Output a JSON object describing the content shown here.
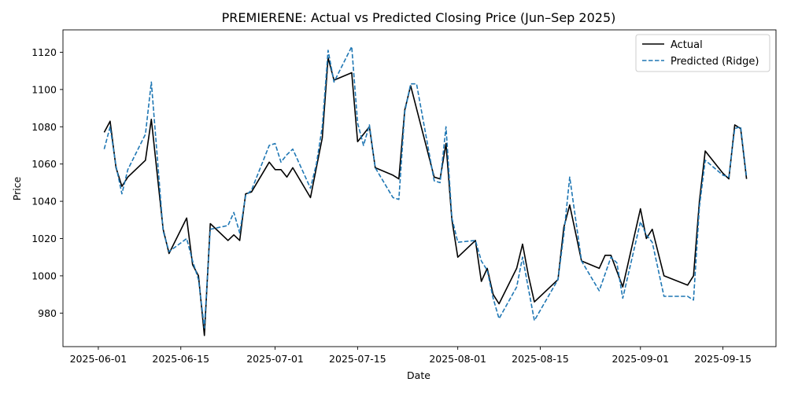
{
  "chart_data": {
    "type": "line",
    "title": "PREMIERENE: Actual vs Predicted Closing Price (Jun–Sep 2025)",
    "xlabel": "Date",
    "ylabel": "Price",
    "xlim": [
      "2025-05-26",
      "2025-09-24"
    ],
    "ylim": [
      962,
      1132
    ],
    "grid": false,
    "legend_position": "top-right",
    "x_ticks": [
      "2025-06-01",
      "2025-06-15",
      "2025-07-01",
      "2025-07-15",
      "2025-08-01",
      "2025-08-15",
      "2025-09-01",
      "2025-09-15"
    ],
    "y_ticks": [
      980,
      1000,
      1020,
      1040,
      1060,
      1080,
      1100,
      1120
    ],
    "series": [
      {
        "name": "Actual",
        "color": "#000000",
        "style": "solid",
        "points": [
          [
            "2025-06-02",
            1077
          ],
          [
            "2025-06-03",
            1083
          ],
          [
            "2025-06-04",
            1058
          ],
          [
            "2025-06-05",
            1048
          ],
          [
            "2025-06-06",
            1053
          ],
          [
            "2025-06-09",
            1062
          ],
          [
            "2025-06-10",
            1084
          ],
          [
            "2025-06-12",
            1025
          ],
          [
            "2025-06-13",
            1012
          ],
          [
            "2025-06-16",
            1031
          ],
          [
            "2025-06-17",
            1006
          ],
          [
            "2025-06-18",
            1000
          ],
          [
            "2025-06-19",
            968
          ],
          [
            "2025-06-20",
            1028
          ],
          [
            "2025-06-23",
            1019
          ],
          [
            "2025-06-24",
            1022
          ],
          [
            "2025-06-25",
            1019
          ],
          [
            "2025-06-26",
            1044
          ],
          [
            "2025-06-27",
            1045
          ],
          [
            "2025-06-30",
            1061
          ],
          [
            "2025-07-01",
            1057
          ],
          [
            "2025-07-02",
            1057
          ],
          [
            "2025-07-03",
            1053
          ],
          [
            "2025-07-04",
            1058
          ],
          [
            "2025-07-07",
            1042
          ],
          [
            "2025-07-08",
            1058
          ],
          [
            "2025-07-09",
            1074
          ],
          [
            "2025-07-10",
            1117
          ],
          [
            "2025-07-11",
            1105
          ],
          [
            "2025-07-14",
            1109
          ],
          [
            "2025-07-15",
            1072
          ],
          [
            "2025-07-16",
            1076
          ],
          [
            "2025-07-17",
            1080
          ],
          [
            "2025-07-18",
            1058
          ],
          [
            "2025-07-21",
            1054
          ],
          [
            "2025-07-22",
            1052
          ],
          [
            "2025-07-23",
            1089
          ],
          [
            "2025-07-24",
            1102
          ],
          [
            "2025-07-28",
            1053
          ],
          [
            "2025-07-29",
            1052
          ],
          [
            "2025-07-30",
            1071
          ],
          [
            "2025-07-31",
            1030
          ],
          [
            "2025-08-01",
            1010
          ],
          [
            "2025-08-04",
            1019
          ],
          [
            "2025-08-05",
            997
          ],
          [
            "2025-08-06",
            1004
          ],
          [
            "2025-08-07",
            990
          ],
          [
            "2025-08-08",
            985
          ],
          [
            "2025-08-11",
            1004
          ],
          [
            "2025-08-12",
            1017
          ],
          [
            "2025-08-13",
            1000
          ],
          [
            "2025-08-14",
            986
          ],
          [
            "2025-08-18",
            998
          ],
          [
            "2025-08-19",
            1026
          ],
          [
            "2025-08-20",
            1038
          ],
          [
            "2025-08-22",
            1008
          ],
          [
            "2025-08-25",
            1004
          ],
          [
            "2025-08-26",
            1011
          ],
          [
            "2025-08-27",
            1011
          ],
          [
            "2025-08-29",
            994
          ],
          [
            "2025-09-01",
            1036
          ],
          [
            "2025-09-02",
            1020
          ],
          [
            "2025-09-03",
            1025
          ],
          [
            "2025-09-05",
            1000
          ],
          [
            "2025-09-09",
            995
          ],
          [
            "2025-09-10",
            1000
          ],
          [
            "2025-09-11",
            1040
          ],
          [
            "2025-09-12",
            1067
          ],
          [
            "2025-09-15",
            1055
          ],
          [
            "2025-09-16",
            1052
          ],
          [
            "2025-09-17",
            1081
          ],
          [
            "2025-09-18",
            1079
          ],
          [
            "2025-09-19",
            1052
          ]
        ]
      },
      {
        "name": "Predicted (Ridge)",
        "color": "#1f77b4",
        "style": "dashed",
        "points": [
          [
            "2025-06-02",
            1068
          ],
          [
            "2025-06-03",
            1080
          ],
          [
            "2025-06-04",
            1059
          ],
          [
            "2025-06-05",
            1044
          ],
          [
            "2025-06-06",
            1057
          ],
          [
            "2025-06-09",
            1076
          ],
          [
            "2025-06-10",
            1104
          ],
          [
            "2025-06-12",
            1024
          ],
          [
            "2025-06-13",
            1013
          ],
          [
            "2025-06-16",
            1020
          ],
          [
            "2025-06-17",
            1008
          ],
          [
            "2025-06-18",
            998
          ],
          [
            "2025-06-19",
            972
          ],
          [
            "2025-06-20",
            1025
          ],
          [
            "2025-06-23",
            1027
          ],
          [
            "2025-06-24",
            1034
          ],
          [
            "2025-06-25",
            1023
          ],
          [
            "2025-06-26",
            1043
          ],
          [
            "2025-06-27",
            1046
          ],
          [
            "2025-06-30",
            1070
          ],
          [
            "2025-07-01",
            1071
          ],
          [
            "2025-07-02",
            1061
          ],
          [
            "2025-07-03",
            1065
          ],
          [
            "2025-07-04",
            1068
          ],
          [
            "2025-07-07",
            1047
          ],
          [
            "2025-07-08",
            1060
          ],
          [
            "2025-07-09",
            1080
          ],
          [
            "2025-07-10",
            1121
          ],
          [
            "2025-07-11",
            1104
          ],
          [
            "2025-07-14",
            1123
          ],
          [
            "2025-07-15",
            1082
          ],
          [
            "2025-07-16",
            1070
          ],
          [
            "2025-07-17",
            1081
          ],
          [
            "2025-07-18",
            1058
          ],
          [
            "2025-07-21",
            1042
          ],
          [
            "2025-07-22",
            1041
          ],
          [
            "2025-07-23",
            1088
          ],
          [
            "2025-07-24",
            1103
          ],
          [
            "2025-07-25",
            1103
          ],
          [
            "2025-07-28",
            1051
          ],
          [
            "2025-07-29",
            1050
          ],
          [
            "2025-07-30",
            1080
          ],
          [
            "2025-07-31",
            1031
          ],
          [
            "2025-08-01",
            1018
          ],
          [
            "2025-08-04",
            1019
          ],
          [
            "2025-08-05",
            1008
          ],
          [
            "2025-08-06",
            1003
          ],
          [
            "2025-08-07",
            988
          ],
          [
            "2025-08-08",
            977
          ],
          [
            "2025-08-11",
            994
          ],
          [
            "2025-08-12",
            1010
          ],
          [
            "2025-08-14",
            976
          ],
          [
            "2025-08-18",
            998
          ],
          [
            "2025-08-19",
            1022
          ],
          [
            "2025-08-20",
            1053
          ],
          [
            "2025-08-22",
            1008
          ],
          [
            "2025-08-25",
            992
          ],
          [
            "2025-08-26",
            1001
          ],
          [
            "2025-08-27",
            1010
          ],
          [
            "2025-08-28",
            1007
          ],
          [
            "2025-08-29",
            988
          ],
          [
            "2025-09-01",
            1029
          ],
          [
            "2025-09-02",
            1022
          ],
          [
            "2025-09-03",
            1018
          ],
          [
            "2025-09-05",
            989
          ],
          [
            "2025-09-09",
            989
          ],
          [
            "2025-09-10",
            987
          ],
          [
            "2025-09-11",
            1037
          ],
          [
            "2025-09-12",
            1062
          ],
          [
            "2025-09-15",
            1054
          ],
          [
            "2025-09-16",
            1053
          ],
          [
            "2025-09-17",
            1079
          ],
          [
            "2025-09-18",
            1080
          ],
          [
            "2025-09-19",
            1053
          ]
        ]
      }
    ]
  }
}
